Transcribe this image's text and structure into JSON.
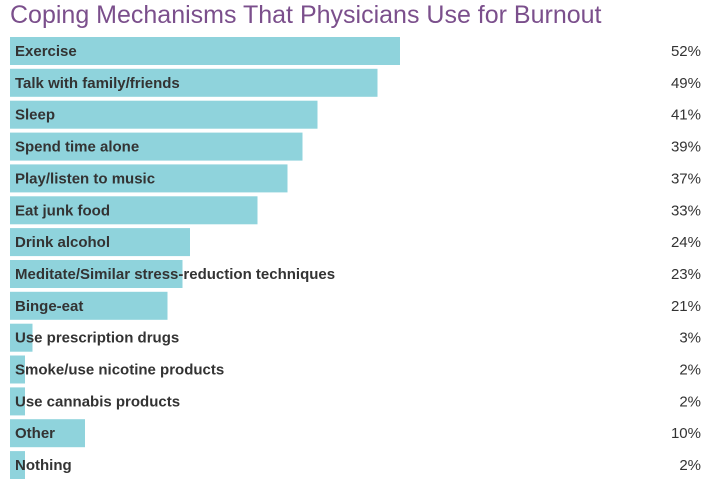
{
  "chart_data": {
    "type": "bar",
    "orientation": "horizontal",
    "title": "Coping Mechanisms That Physicians Use for Burnout",
    "categories": [
      "Exercise",
      "Talk with family/friends",
      "Sleep",
      "Spend time alone",
      "Play/listen to music",
      "Eat junk food",
      "Drink alcohol",
      "Meditate/Similar stress-reduction techniques",
      "Binge-eat",
      "Use prescription drugs",
      "Smoke/use nicotine products",
      "Use cannabis products",
      "Other",
      "Nothing"
    ],
    "values": [
      52,
      49,
      41,
      39,
      37,
      33,
      24,
      23,
      21,
      3,
      2,
      2,
      10,
      2
    ],
    "value_labels": [
      "52%",
      "49%",
      "41%",
      "39%",
      "37%",
      "33%",
      "24%",
      "23%",
      "21%",
      "3%",
      "2%",
      "2%",
      "10%",
      "2%"
    ],
    "unit": "%",
    "bar_color": "#8fd3dc",
    "title_color": "#7b4f8c",
    "text_color": "#333333",
    "grid": false,
    "legend": "none"
  }
}
